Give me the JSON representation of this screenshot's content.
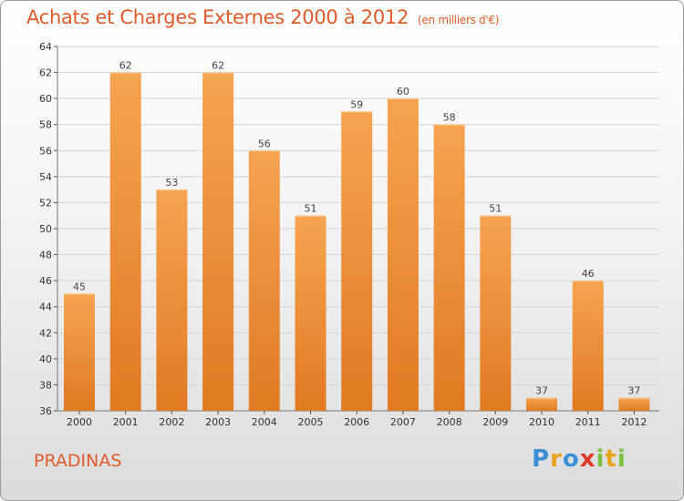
{
  "header": {
    "title": "Achats et Charges Externes 2000 à 2012",
    "unit": "(en milliers d'€)"
  },
  "footer": {
    "city": "PRADINAS",
    "logo": [
      "P",
      "r",
      "o",
      "x",
      "i",
      "t",
      "i"
    ],
    "logo_colors": [
      "#3a8fd6",
      "#e8a21a",
      "#3a8fd6",
      "#e23a2a",
      "#7cc242",
      "#e8a21a",
      "#7cc242"
    ]
  },
  "colors": {
    "bar_light": "#f6a452",
    "bar_dark": "#e07a22",
    "accent": "#e05b2b",
    "grid": "#d4d4d4"
  },
  "chart_data": {
    "type": "bar",
    "categories": [
      "2000",
      "2001",
      "2002",
      "2003",
      "2004",
      "2005",
      "2006",
      "2007",
      "2008",
      "2009",
      "2010",
      "2011",
      "2012"
    ],
    "values": [
      45,
      62,
      53,
      62,
      56,
      51,
      59,
      60,
      58,
      51,
      37,
      46,
      37
    ],
    "data_labels": [
      "45",
      "62",
      "53",
      "62",
      "56",
      "51",
      "59",
      "60",
      "58",
      "51",
      "37",
      "46",
      "37"
    ],
    "ylim": [
      36,
      64
    ],
    "yticks": [
      "36",
      "38",
      "40",
      "42",
      "44",
      "46",
      "48",
      "50",
      "52",
      "54",
      "56",
      "58",
      "60",
      "62",
      "64"
    ],
    "grid": true
  }
}
